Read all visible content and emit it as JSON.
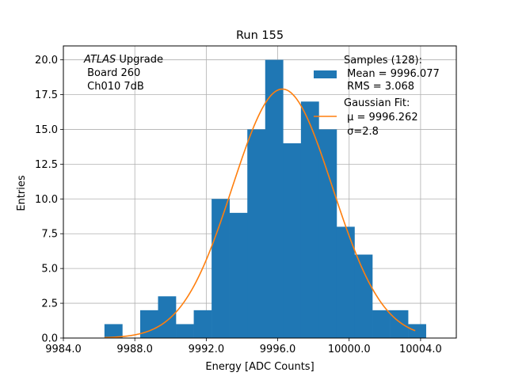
{
  "chart_data": {
    "type": "bar",
    "title": "Run 155",
    "xlabel": "Energy [ADC Counts]",
    "ylabel": "Entries",
    "xlim": [
      9984.0,
      10006.0
    ],
    "ylim": [
      0,
      21
    ],
    "x_ticks": [
      9984.0,
      9988.0,
      9992.0,
      9996.0,
      10000.0,
      10004.0
    ],
    "x_tick_labels": [
      "9984.0",
      "9988.0",
      "9992.0",
      "9996.0",
      "10000.0",
      "10004.0"
    ],
    "y_ticks": [
      0,
      2.5,
      5,
      7.5,
      10,
      12.5,
      15,
      17.5,
      20
    ],
    "y_tick_labels": [
      "0.0",
      "2.5",
      "5.0",
      "7.5",
      "10.0",
      "12.5",
      "15.0",
      "17.5",
      "20.0"
    ],
    "grid": true,
    "bar_color": "#1f77b4",
    "fit_color": "#ff7f0e",
    "histogram": {
      "bin_edges": [
        9986.3,
        9987.3,
        9988.3,
        9989.3,
        9990.3,
        9991.3,
        9992.3,
        9993.3,
        9994.3,
        9995.3,
        9996.3,
        9997.3,
        9998.3,
        9999.3,
        10000.3,
        10001.3,
        10002.3,
        10003.3,
        10004.3
      ],
      "counts": [
        1,
        0,
        2,
        3,
        1,
        2,
        10,
        9,
        15,
        20,
        14,
        17,
        15,
        8,
        6,
        2,
        2,
        1
      ]
    },
    "gaussian_fit": {
      "mu": 9996.262,
      "sigma": 2.8,
      "amplitude": 17.9,
      "x_range": [
        9986.3,
        10003.7
      ]
    },
    "annotation": {
      "lines": [
        "ATLAS Upgrade",
        " Board 260",
        " Ch010 7dB"
      ],
      "italic_word": "ATLAS",
      "rest_of_first_line": " Upgrade",
      "location": "upper-left"
    },
    "legend": {
      "location": "upper-right",
      "entries": [
        {
          "label_lines": [
            "Samples (128):",
            " Mean = 9996.077",
            " RMS = 3.068"
          ],
          "marker": "patch"
        },
        {
          "label_lines": [
            "Gaussian Fit:",
            " μ = 9996.262",
            " σ=2.8"
          ],
          "marker": "line"
        }
      ]
    }
  }
}
